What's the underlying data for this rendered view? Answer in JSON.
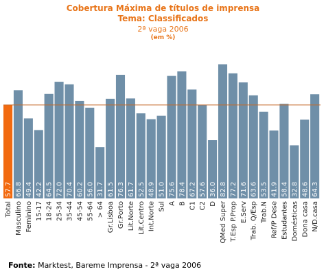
{
  "header": {
    "title": "Cobertura Máxima de títulos de imprensa",
    "subtitle": "Tema: Classificados",
    "wave": "2ª vaga 2006",
    "unit": "(em %)"
  },
  "footer": {
    "source_label": "Fonte:",
    "source_text": " Marktest, Bareme Imprensa - 2ª vaga 2006"
  },
  "colors": {
    "bar": "#6f8fa8",
    "highlight": "#f26a10",
    "refline": "#c46a2a",
    "title": "#e8751a"
  },
  "chart_data": {
    "type": "bar",
    "title": "Cobertura Máxima de títulos de imprensa",
    "categories": [
      "Total",
      "Masculino",
      "Feminino",
      "15-17",
      "18-24",
      "25-34",
      "35-44",
      "45-54",
      "55-64",
      "> 64",
      "Gr.Lisboa",
      "Gr.Porto",
      "Lit.Norte",
      "Lit.Centro",
      "Int.Norte",
      "Sul",
      "A",
      "B",
      "C1",
      "C2",
      "D",
      "QMed Super",
      "T.Esp P.Prop",
      "E.Serv",
      "Trab. Q/Esp",
      "Trab.N",
      "Ref/P Dese",
      "Estudantes",
      "Domésticas",
      "Dona casa",
      "N/D.casa"
    ],
    "values": [
      57.7,
      66.8,
      49.4,
      42.2,
      64.5,
      72.0,
      70.4,
      60.2,
      56.0,
      31.7,
      61.5,
      76.3,
      61.7,
      52.5,
      48.9,
      51.0,
      75.6,
      78.4,
      67.2,
      57.6,
      36.0,
      82.8,
      77.2,
      71.6,
      63.6,
      53.5,
      41.9,
      58.4,
      32.8,
      48.6,
      64.3
    ],
    "value_labels": [
      "57.7",
      "66.8",
      "49.4",
      "42.2",
      "64.5",
      "72.0",
      "70.4",
      "60.2",
      "56.0",
      "31.7",
      "61.5",
      "76.3",
      "61.7",
      "52.5",
      "48.9",
      "51.0",
      "75.6",
      "78.4",
      "67.2",
      "57.6",
      "36.0",
      "82.8",
      "77.2",
      "71.6",
      "63.6",
      "53.5",
      "41.9",
      "58.4",
      "32.8",
      "48.6",
      "64.3"
    ],
    "highlight_index": 0,
    "reference_value": 57.7,
    "ylim": [
      0,
      100
    ],
    "grid": false
  }
}
